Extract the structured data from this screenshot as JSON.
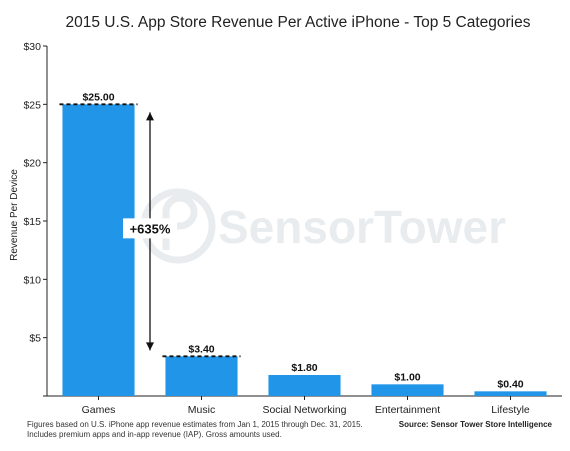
{
  "colors": {
    "bar": "#2196e8",
    "axis": "#222222",
    "watermark": "#e9ecee"
  },
  "watermark": {
    "text": "SensorTower",
    "icon": "sensor-tower-logo-icon"
  },
  "annotation": {
    "text": "+635%",
    "from": 25.0,
    "to": 3.4
  },
  "footnote": {
    "line1": "Figures based on U.S. iPhone app revenue estimates from Jan 1, 2015 through Dec. 31, 2015.",
    "line2": "Includes premium apps and in-app revenue (IAP). Gross amounts used."
  },
  "source": "Source: Sensor Tower Store Intelligence",
  "chart_data": {
    "type": "bar",
    "title": "2015 U.S. App Store Revenue Per Active iPhone - Top 5 Categories",
    "xlabel": "",
    "ylabel": "Revenue Per Device",
    "categories": [
      "Games",
      "Music",
      "Social Networking",
      "Entertainment",
      "Lifestyle"
    ],
    "values": [
      25.0,
      3.4,
      1.8,
      1.0,
      0.4
    ],
    "data_labels": [
      "$25.00",
      "$3.40",
      "$1.80",
      "$1.00",
      "$0.40"
    ],
    "ylim": [
      0,
      30
    ],
    "yticks": [
      0,
      5,
      10,
      15,
      20,
      25,
      30
    ],
    "ytick_labels": [
      "",
      "$5",
      "$10",
      "$15",
      "$20",
      "$25",
      "$30"
    ],
    "grid": false,
    "reference_lines": [
      25.0,
      3.4
    ]
  }
}
